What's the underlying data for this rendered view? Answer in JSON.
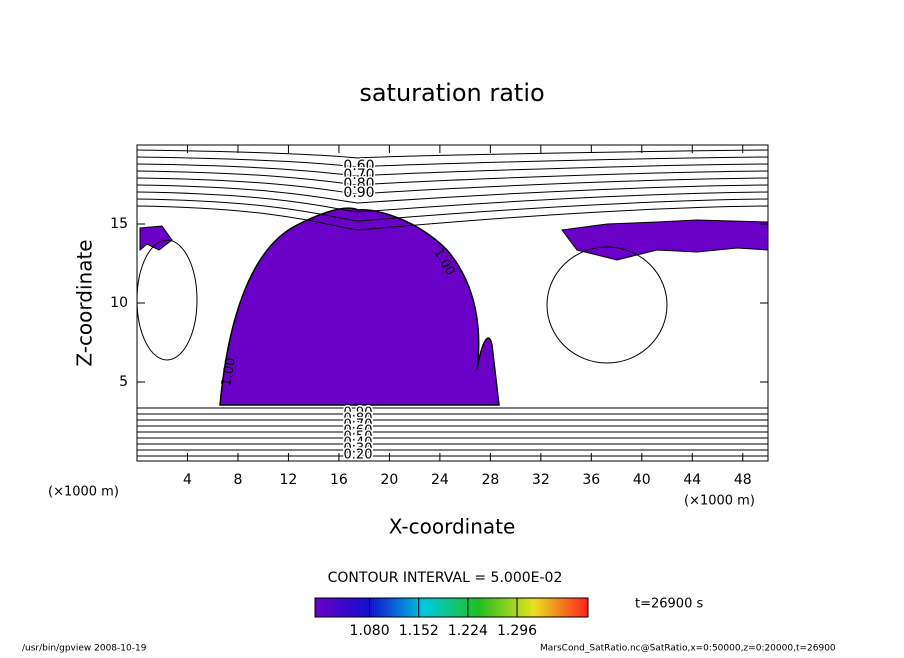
{
  "chart_data": {
    "type": "contour",
    "title": "saturation ratio",
    "xlabel": "X-coordinate",
    "ylabel": "Z-coordinate",
    "x_unit": "(×1000 m)",
    "xlim": [
      0,
      50
    ],
    "ylim": [
      0,
      20
    ],
    "xticks": [
      4,
      8,
      12,
      16,
      20,
      24,
      28,
      32,
      36,
      40,
      44,
      48
    ],
    "yticks": [
      5,
      10,
      15
    ],
    "levels": [
      {
        "value": 0.2,
        "label": "0.20"
      },
      {
        "value": 0.3,
        "label": "0.30"
      },
      {
        "value": 0.4,
        "label": "0.40"
      },
      {
        "value": 0.5,
        "label": "0.50"
      },
      {
        "value": 0.6,
        "label": "0.60"
      },
      {
        "value": 0.7,
        "label": "0.70"
      },
      {
        "value": 0.8,
        "label": "0.80"
      },
      {
        "value": 0.9,
        "label": "0.90"
      },
      {
        "value": 1.0,
        "label": "1.00"
      }
    ],
    "fill_color": "#6a00c8",
    "contour_interval_text": "CONTOUR INTERVAL = 5.000E-02",
    "colorbar": {
      "clim": [
        1.0,
        1.4
      ],
      "colors": [
        "#6a00c8",
        "#1010d0",
        "#00c8e0",
        "#20c020",
        "#e8e020",
        "#ff2020"
      ],
      "ticks": [
        {
          "value": 1.08,
          "label": "1.080"
        },
        {
          "value": 1.152,
          "label": "1.152"
        },
        {
          "value": 1.224,
          "label": "1.224"
        },
        {
          "value": 1.296,
          "label": "1.296"
        }
      ]
    },
    "time_text": "t=26900 s",
    "footer_left": "/usr/bin/gpview   2008-10-19",
    "footer_right": "MarsCond_SatRatio.nc@SatRatio,x=0:50000,z=0:20000,t=26900"
  }
}
